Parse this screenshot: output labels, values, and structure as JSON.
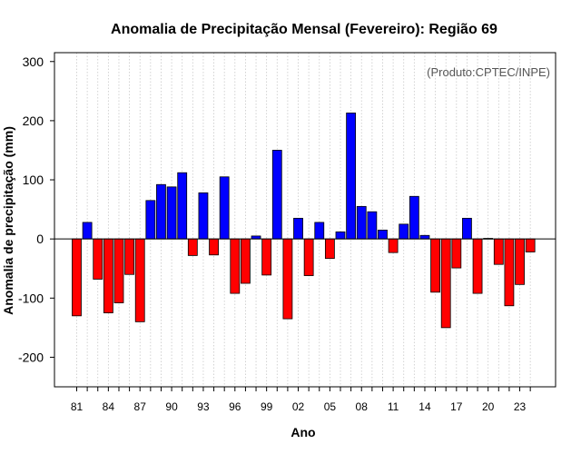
{
  "chart_data": {
    "type": "bar",
    "title": "Anomalia de Precipitação Mensal (Fevereiro): Região 69",
    "xlabel": "Ano",
    "ylabel": "Anomalia de precipitação (mm)",
    "credit": "(Produto:CPTEC/INPE)",
    "ylim": [
      -250,
      315
    ],
    "yticks": [
      -200,
      -100,
      0,
      100,
      200,
      300
    ],
    "grid": "vertical-dotted",
    "categories": [
      "81",
      "82",
      "83",
      "84",
      "85",
      "86",
      "87",
      "88",
      "89",
      "90",
      "91",
      "92",
      "93",
      "94",
      "95",
      "96",
      "97",
      "98",
      "99",
      "00",
      "01",
      "02",
      "03",
      "04",
      "05",
      "06",
      "07",
      "08",
      "09",
      "10",
      "11",
      "12",
      "13",
      "14",
      "15",
      "16",
      "17",
      "18",
      "19",
      "20",
      "21",
      "22",
      "23",
      "24"
    ],
    "xtick_labels": [
      "81",
      "84",
      "87",
      "90",
      "93",
      "96",
      "99",
      "02",
      "05",
      "08",
      "11",
      "14",
      "17",
      "20",
      "23"
    ],
    "values": [
      -130,
      28,
      -68,
      -125,
      -108,
      -60,
      -140,
      65,
      92,
      88,
      112,
      -28,
      78,
      -27,
      105,
      -92,
      -75,
      5,
      -61,
      150,
      -135,
      35,
      -62,
      28,
      -33,
      12,
      213,
      55,
      46,
      15,
      -23,
      25,
      72,
      6,
      -90,
      -150,
      -49,
      35,
      -92,
      1,
      -43,
      -113,
      -77,
      -22
    ],
    "colors": {
      "positive": "#0000ff",
      "negative": "#ff0000"
    }
  }
}
